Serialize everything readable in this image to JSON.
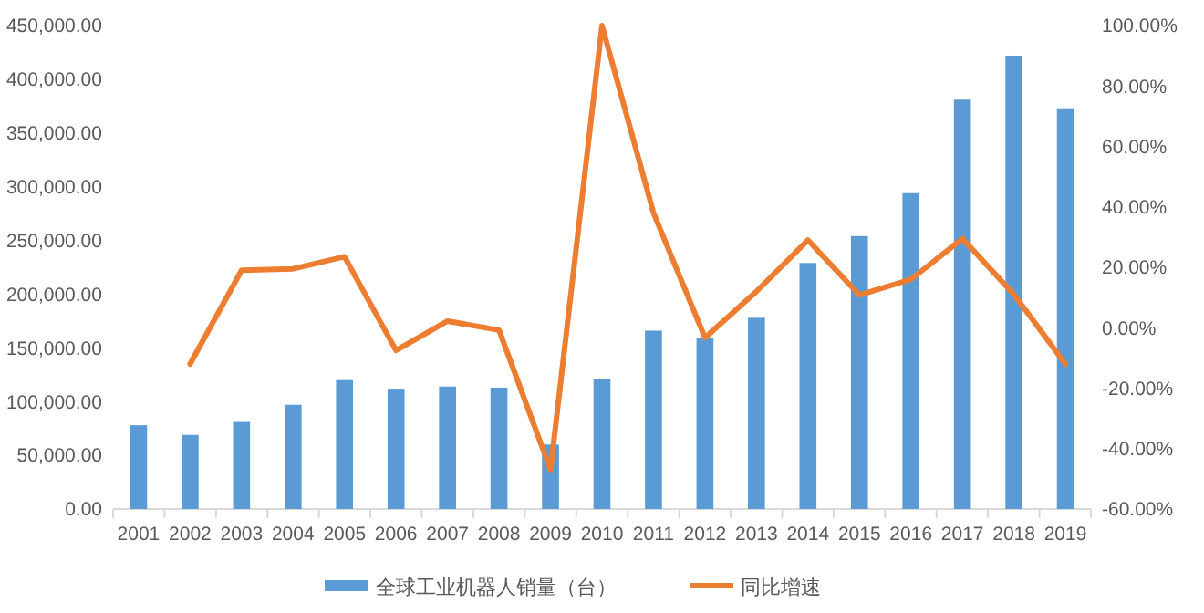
{
  "chart_data": {
    "type": "bar",
    "categories": [
      "2001",
      "2002",
      "2003",
      "2004",
      "2005",
      "2006",
      "2007",
      "2008",
      "2009",
      "2010",
      "2011",
      "2012",
      "2013",
      "2014",
      "2015",
      "2016",
      "2017",
      "2018",
      "2019"
    ],
    "series": [
      {
        "name": "全球工业机器人销量（台）",
        "color": "#5b9bd5",
        "values": [
          78000,
          69000,
          81000,
          97000,
          120000,
          112000,
          114000,
          113000,
          60000,
          121000,
          166000,
          159000,
          178000,
          229000,
          254000,
          294000,
          381000,
          422000,
          373000
        ]
      },
      {
        "name": "同比增速",
        "type": "line",
        "axis": "y2",
        "color": "#ed7d31",
        "values": [
          null,
          -12,
          19,
          19.5,
          23.5,
          -7.5,
          2.2,
          -0.8,
          -47,
          100,
          38,
          -3.3,
          12,
          29,
          10.8,
          16,
          29.5,
          11,
          -12
        ]
      }
    ],
    "ylim": [
      0,
      450000
    ],
    "yticks": [
      {
        "value": 0,
        "label": "0.00"
      },
      {
        "value": 50000,
        "label": "50,000.00"
      },
      {
        "value": 100000,
        "label": "100,000.00"
      },
      {
        "value": 150000,
        "label": "150,000.00"
      },
      {
        "value": 200000,
        "label": "200,000.00"
      },
      {
        "value": 250000,
        "label": "250,000.00"
      },
      {
        "value": 300000,
        "label": "300,000.00"
      },
      {
        "value": 350000,
        "label": "350,000.00"
      },
      {
        "value": 400000,
        "label": "400,000.00"
      },
      {
        "value": 450000,
        "label": "450,000.00"
      }
    ],
    "y2lim": [
      -60,
      100
    ],
    "y2ticks": [
      {
        "value": -60,
        "label": "-60.00%"
      },
      {
        "value": -40,
        "label": "-40.00%"
      },
      {
        "value": -20,
        "label": "-20.00%"
      },
      {
        "value": 0,
        "label": "0.00%"
      },
      {
        "value": 20,
        "label": "20.00%"
      },
      {
        "value": 40,
        "label": "40.00%"
      },
      {
        "value": 60,
        "label": "60.00%"
      },
      {
        "value": 80,
        "label": "80.00%"
      },
      {
        "value": 100,
        "label": "100.00%"
      }
    ],
    "legend": "bottom",
    "grid": false,
    "marker": "none"
  }
}
